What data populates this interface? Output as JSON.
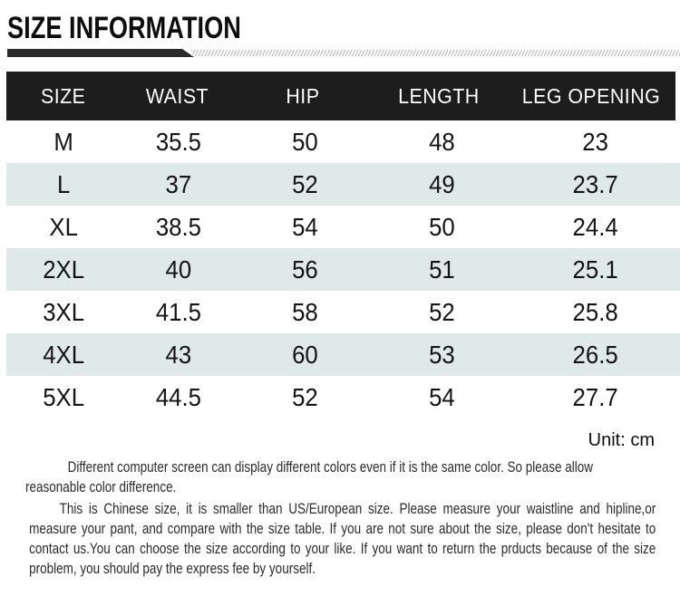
{
  "page": {
    "title": "SIZE INFORMATION",
    "unit_label": "Unit: cm"
  },
  "table": {
    "headers": [
      "SIZE",
      "WAIST",
      "HIP",
      "LENGTH",
      "LEG OPENING"
    ],
    "rows": [
      [
        "M",
        "35.5",
        "50",
        "48",
        "23"
      ],
      [
        "L",
        "37",
        "52",
        "49",
        "23.7"
      ],
      [
        "XL",
        "38.5",
        "54",
        "50",
        "24.4"
      ],
      [
        "2XL",
        "40",
        "56",
        "51",
        "25.1"
      ],
      [
        "3XL",
        "41.5",
        "58",
        "52",
        "25.8"
      ],
      [
        "4XL",
        "43",
        "60",
        "53",
        "26.5"
      ],
      [
        "5XL",
        "44.5",
        "52",
        "54",
        "27.7"
      ]
    ]
  },
  "notes": {
    "color_note": "Different computer screen can display different colors even if it is the same color. So please allow reasonable color difference.",
    "size_note": "This is Chinese size, it is smaller than US/European size. Please measure your waistline and hipline,or measure your pant, and compare with the size table. If you are not sure about the size, please don't hesitate to contact us.You can choose the size according to your like. If you want to return the prducts because of the size problem, you should pay the express fee by yourself."
  },
  "colors": {
    "header_bg": "#1d1d1d",
    "header_text": "#ffffff",
    "row_alt_bg": "#dfe9e7",
    "bar_dark": "#2b2b2b",
    "stripe": "#b5b5b5"
  }
}
